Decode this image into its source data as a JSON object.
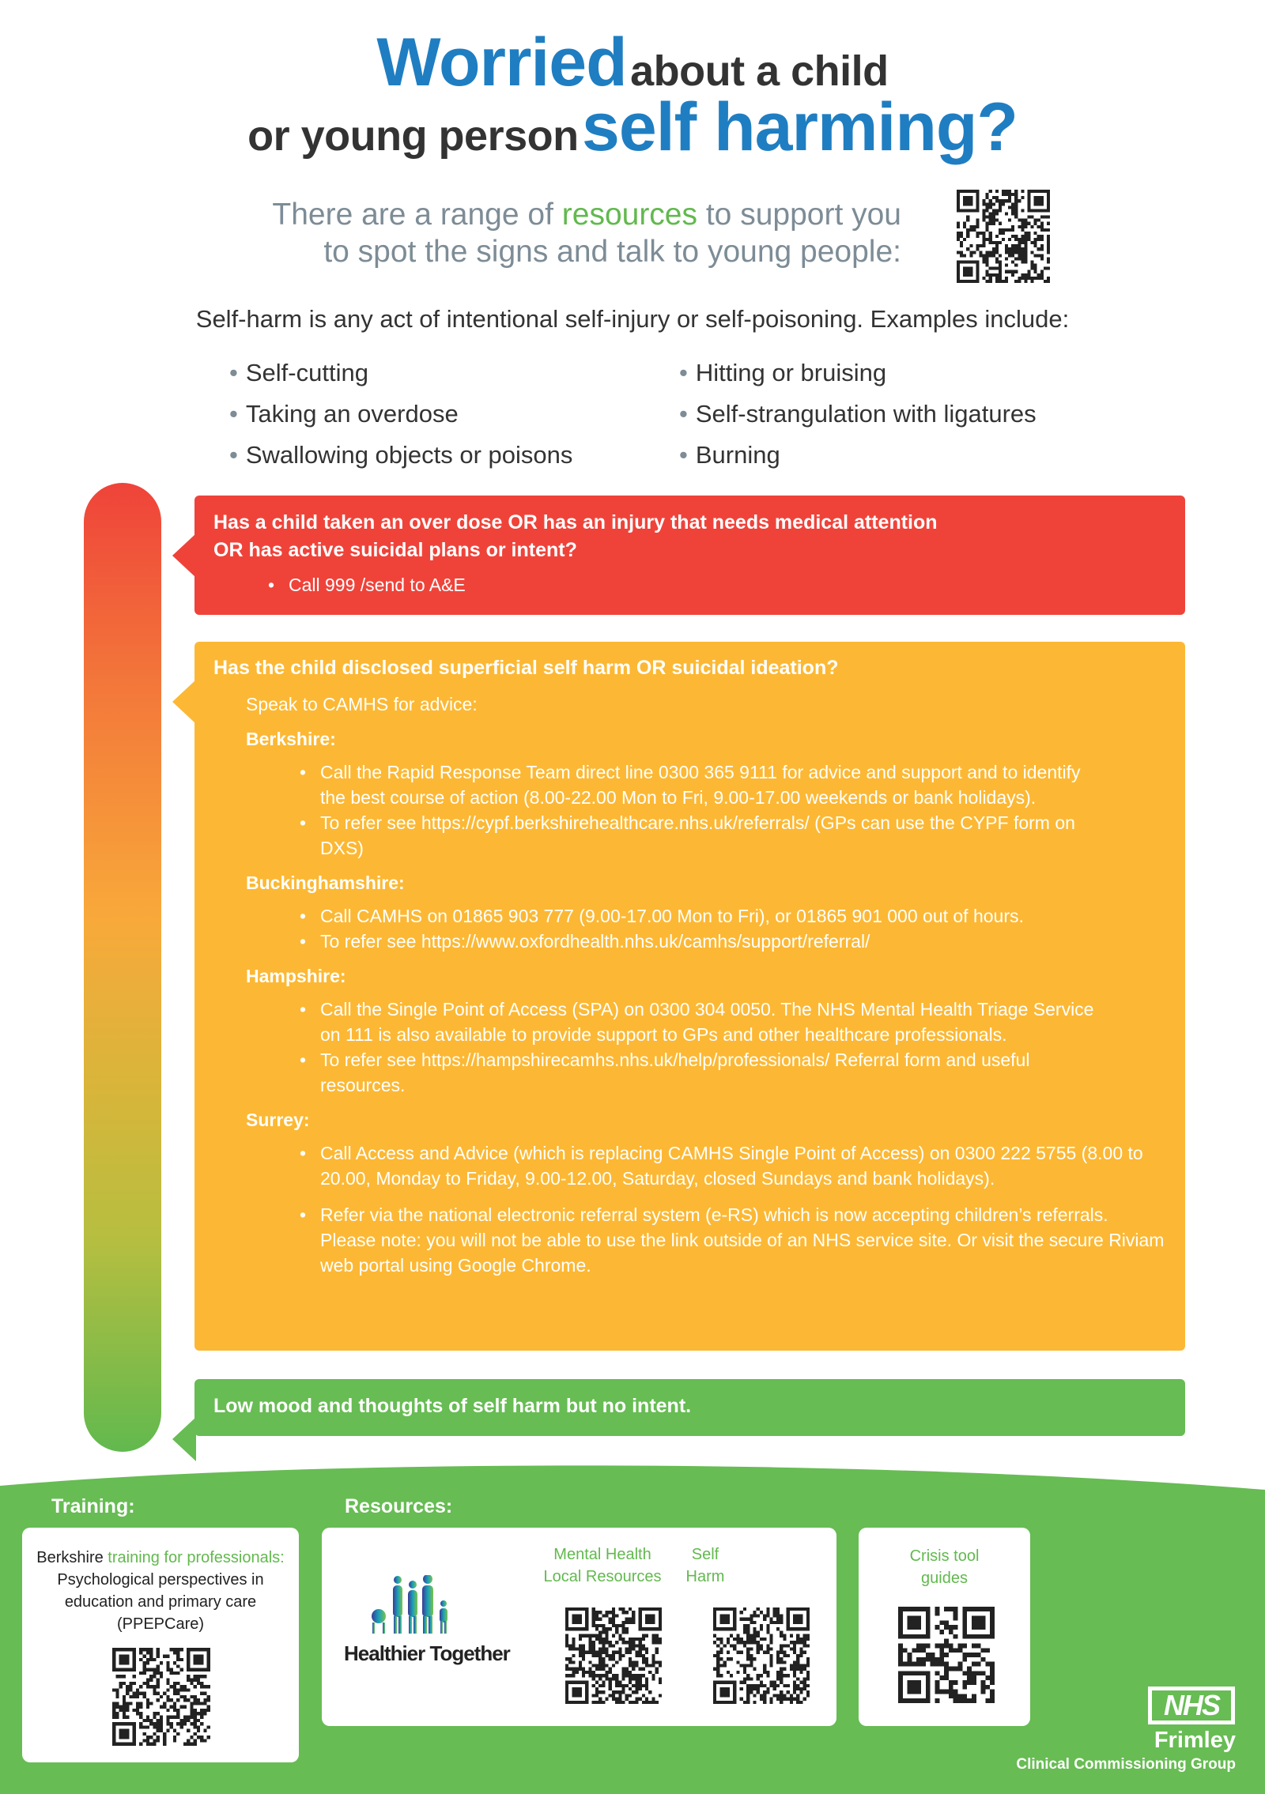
{
  "title": {
    "line1_big": "Worried",
    "line1_small": "about a child",
    "line2_small": "or young person",
    "line2_big": "self harming?"
  },
  "subtitle": {
    "pre": "There are a range of ",
    "highlight": "resources",
    "post": " to support you",
    "line2": "to spot the signs and talk to young people:"
  },
  "intro": "Self-harm is any act of intentional self-injury or self-poisoning. Examples include:",
  "examples": {
    "left": [
      "Self-cutting",
      "Taking an overdose",
      "Swallowing objects or poisons"
    ],
    "right": [
      "Hitting or bruising",
      "Self-strangulation with ligatures",
      "Burning"
    ]
  },
  "red": {
    "question_l1": "Has a child taken an over dose OR has an injury that needs medical attention",
    "question_l2": "OR has active suicidal plans or intent?",
    "action": "Call 999 /send to A&E"
  },
  "orange": {
    "question": "Has the child disclosed superficial self harm OR suicidal ideation?",
    "lead": "Speak to CAMHS for advice:",
    "berkshire": {
      "label": "Berkshire:",
      "b1": "Call the Rapid Response Team direct line 0300 365 9111 for advice and support and to identify the best course of action (8.00-22.00 Mon to Fri, 9.00-17.00 weekends or bank holidays).",
      "b2_pre": "To refer see ",
      "b2_link": "https://cypf.berkshirehealthcare.nhs.uk/referrals/",
      "b2_post": "  (GPs can use the CYPF form on DXS)"
    },
    "buckinghamshire": {
      "label": "Buckinghamshire:",
      "b1": "Call CAMHS on 01865 903 777 (9.00-17.00 Mon to Fri), or 01865 901 000 out of hours.",
      "b2_pre": "To refer see ",
      "b2_link": "https://www.oxfordhealth.nhs.uk/camhs/support/referral/"
    },
    "hampshire": {
      "label": "Hampshire:",
      "b1": "Call the Single Point of Access (SPA) on 0300 304 0050. The NHS Mental Health Triage Service on 111 is also available to provide support to GPs and other healthcare professionals.",
      "b2_pre": "To refer see ",
      "b2_link": "https://hampshirecamhs.nhs.uk/help/professionals/",
      "b2_post": " Referral form and useful resources."
    },
    "surrey": {
      "label": "Surrey:",
      "b1": "Call Access and Advice (which is replacing CAMHS Single Point of Access) on 0300 222 5755 (8.00 to 20.00, Monday to Friday, 9.00-12.00, Saturday, closed Sundays and bank holidays).",
      "b2_pre": "Refer via the national electronic referral system (e-RS) which is now accepting children’s referrals. Please note: you will not be able to use the link outside of an NHS service site. Or visit the secure ",
      "b2_link": "Riviam web portal",
      "b2_post": " using Google Chrome."
    }
  },
  "green": {
    "statement": "Low mood and thoughts of self harm but no intent."
  },
  "footer": {
    "training_label": "Training:",
    "resources_label": "Resources:",
    "training": {
      "pre": "Berkshire ",
      "link": "training for professionals:",
      "post": " Psychological perspectives in education and primary care (PPEPCare)"
    },
    "healthier_together": "Healthier Together",
    "mental_health_l1": "Mental Health",
    "mental_health_l2": "Local Resources",
    "self_harm_l1": "Self",
    "self_harm_l2": "Harm",
    "crisis_l1": "Crisis tool",
    "crisis_l2": "guides",
    "nhs_logo": "NHS",
    "org": "Frimley",
    "org_sub": "Clinical Commissioning Group"
  },
  "colors": {
    "blue": "#1f7ec2",
    "red": "#ef433a",
    "orange": "#fcb834",
    "green": "#67bc53",
    "grey": "#7d8c96"
  },
  "icons": {
    "qr": "qr-code",
    "logo": "healthier-together-family"
  }
}
